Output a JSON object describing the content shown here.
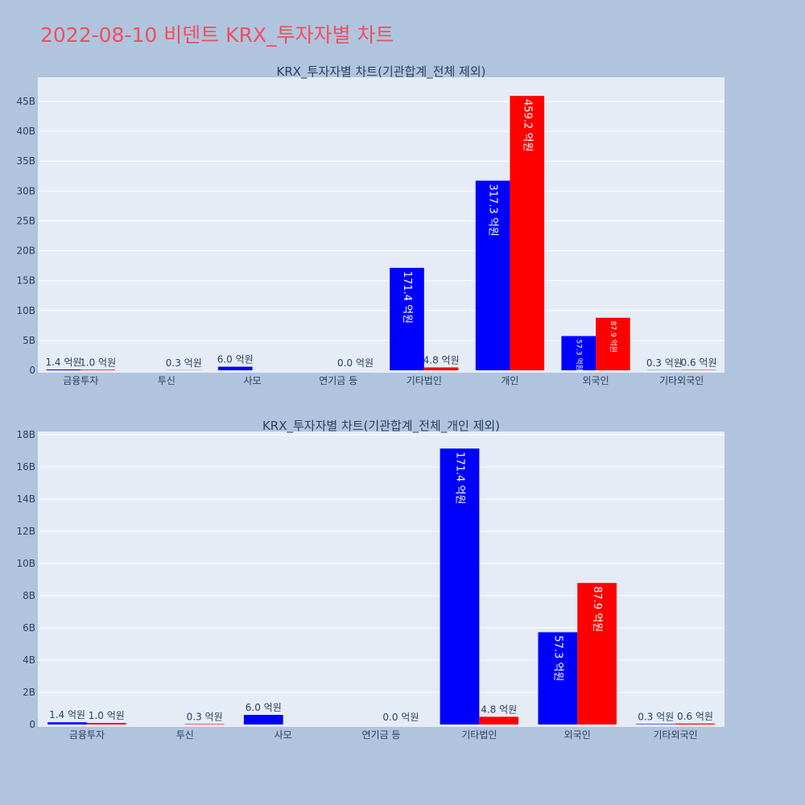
{
  "page_title": "2022-08-10 비덴트 KRX_투자자별 차트",
  "colors": {
    "buy": "#0000ff",
    "sell": "#ff0000",
    "plot_bg": "#e5ecf6",
    "page_bg": "#b0c4de",
    "title": "#ef4f5f"
  },
  "chart_data": [
    {
      "type": "bar",
      "title": "KRX_투자자별 차트(기관합계_전체 제외)",
      "categories": [
        "금융투자",
        "투신",
        "사모",
        "연기금 등",
        "기타법인",
        "개인",
        "외국인",
        "기타외국인"
      ],
      "series": [
        {
          "values": [
            0.14,
            0,
            0.6,
            0,
            17.14,
            31.73,
            5.73,
            0.03
          ],
          "labels": [
            "1.4 억원",
            "",
            "6.0 억원",
            "",
            "171.4 억원",
            "317.3 억원",
            "57.3 억원",
            "0.3 억원"
          ]
        },
        {
          "values": [
            0.1,
            0.03,
            0,
            0.0,
            0.48,
            45.92,
            8.79,
            0.06
          ],
          "labels": [
            "1.0 억원",
            "0.3 억원",
            "",
            "0.0 억원",
            "4.8 억원",
            "459.2 억원",
            "87.9 억원",
            "0.6 억원"
          ]
        }
      ],
      "yticks": [
        "0",
        "5B",
        "10B",
        "15B",
        "20B",
        "25B",
        "30B",
        "35B",
        "40B",
        "45B"
      ],
      "ytick_values": [
        0,
        5,
        10,
        15,
        20,
        25,
        30,
        35,
        40,
        45
      ],
      "ylim": [
        0,
        48.5
      ],
      "grid": true
    },
    {
      "type": "bar",
      "title": "KRX_투자자별 차트(기관합계_전체_개인 제외)",
      "categories": [
        "금융투자",
        "투신",
        "사모",
        "연기금 등",
        "기타법인",
        "외국인",
        "기타외국인"
      ],
      "series": [
        {
          "values": [
            0.14,
            0,
            0.6,
            0,
            17.14,
            5.73,
            0.03
          ],
          "labels": [
            "1.4 억원",
            "",
            "6.0 억원",
            "",
            "171.4 억원",
            "57.3 억원",
            "0.3 억원"
          ]
        },
        {
          "values": [
            0.1,
            0.03,
            0,
            0.0,
            0.48,
            8.79,
            0.06
          ],
          "labels": [
            "1.0 억원",
            "0.3 억원",
            "",
            "0.0 억원",
            "4.8 억원",
            "87.9 억원",
            "0.6 억원"
          ]
        }
      ],
      "yticks": [
        "0",
        "2B",
        "4B",
        "6B",
        "8B",
        "10B",
        "12B",
        "14B",
        "16B",
        "18B"
      ],
      "ytick_values": [
        0,
        2,
        4,
        6,
        8,
        10,
        12,
        14,
        16,
        18
      ],
      "ylim": [
        0,
        18.0
      ],
      "grid": true
    }
  ]
}
